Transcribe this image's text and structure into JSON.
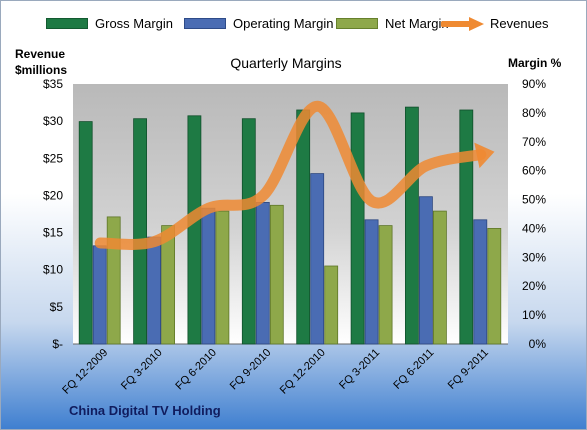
{
  "chart_data": {
    "type": "bar",
    "title": "Quarterly Margins",
    "subtitle": "China Digital TV Holding",
    "ylabel_left": "Revenue $millions",
    "ylabel_right": "Margin %",
    "categories": [
      "FQ 12-2009",
      "FQ 3-2010",
      "FQ 6-2010",
      "FQ 9-2010",
      "FQ 12-2010",
      "FQ 3-2011",
      "FQ 6-2011",
      "FQ 9-2011"
    ],
    "series": [
      {
        "name": "Gross Margin",
        "type": "bar",
        "axis": "right",
        "color": "#1e7a44",
        "values": [
          77,
          78,
          79,
          78,
          81,
          80,
          82,
          81
        ]
      },
      {
        "name": "Operating Margin",
        "type": "bar",
        "axis": "right",
        "color": "#4a6cb3",
        "values": [
          34,
          37,
          47,
          49,
          59,
          43,
          51,
          43
        ]
      },
      {
        "name": "Net Margin",
        "type": "bar",
        "axis": "right",
        "color": "#8ea84a",
        "values": [
          44,
          41,
          46,
          48,
          27,
          41,
          46,
          40
        ]
      },
      {
        "name": "Revenues",
        "type": "line",
        "axis": "left",
        "color": "#ef8a32",
        "values": [
          13.6,
          13.8,
          18.3,
          20.0,
          32.0,
          19.2,
          24.0,
          25.5
        ]
      }
    ],
    "y_left": {
      "min": 0,
      "max": 35,
      "ticks": [
        0,
        5,
        10,
        15,
        20,
        25,
        30,
        35
      ],
      "tick_labels": [
        "$-",
        "$5",
        "$10",
        "$15",
        "$20",
        "$25",
        "$30",
        "$35"
      ]
    },
    "y_right": {
      "min": 0,
      "max": 90,
      "ticks": [
        0,
        10,
        20,
        30,
        40,
        50,
        60,
        70,
        80,
        90
      ],
      "tick_labels": [
        "0%",
        "10%",
        "20%",
        "30%",
        "40%",
        "50%",
        "60%",
        "70%",
        "80%",
        "90%"
      ]
    },
    "grid": false,
    "legend_position": "top"
  },
  "legend": {
    "gross": "Gross Margin",
    "operating": "Operating Margin",
    "net": "Net Margin",
    "revenues": "Revenues"
  },
  "axis_titles": {
    "left_line1": "Revenue",
    "left_line2": "$millions",
    "right": "Margin %"
  }
}
